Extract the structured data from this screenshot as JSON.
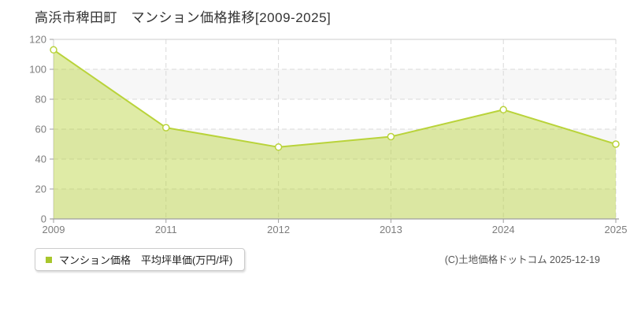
{
  "title": "高浜市稗田町　マンション価格推移[2009-2025]",
  "legend": {
    "label": "マンション価格　平均坪単価(万円/坪)",
    "swatch_color": "#a8c62c"
  },
  "copyright": "(C)土地価格ドットコム 2025-12-19",
  "chart_data": {
    "type": "area",
    "title": "高浜市稗田町 マンション価格推移[2009-2025]",
    "categories": [
      "2009",
      "2011",
      "2012",
      "2013",
      "2024",
      "2025"
    ],
    "series": [
      {
        "name": "マンション価格 平均坪単価(万円/坪)",
        "values": [
          113,
          61,
          48,
          55,
          73,
          50
        ]
      }
    ],
    "xlabel": "",
    "ylabel": "万円/坪",
    "ylim": [
      0,
      120
    ],
    "yticks": [
      0,
      20,
      40,
      60,
      80,
      100,
      120
    ],
    "grid": true,
    "legend_position": "bottom-left",
    "colors": {
      "line": "#b9d33a",
      "fill": "#b9d33a",
      "fill_opacity": 0.45,
      "marker_fill": "#ffffff",
      "band_alt": "#f7f7f7",
      "band_main": "#ffffff",
      "gridline": "#d9d9d9",
      "plot_border": "#cccccc",
      "axis_line": "#9e9e9e",
      "tick_label": "#7d7d7d"
    }
  }
}
